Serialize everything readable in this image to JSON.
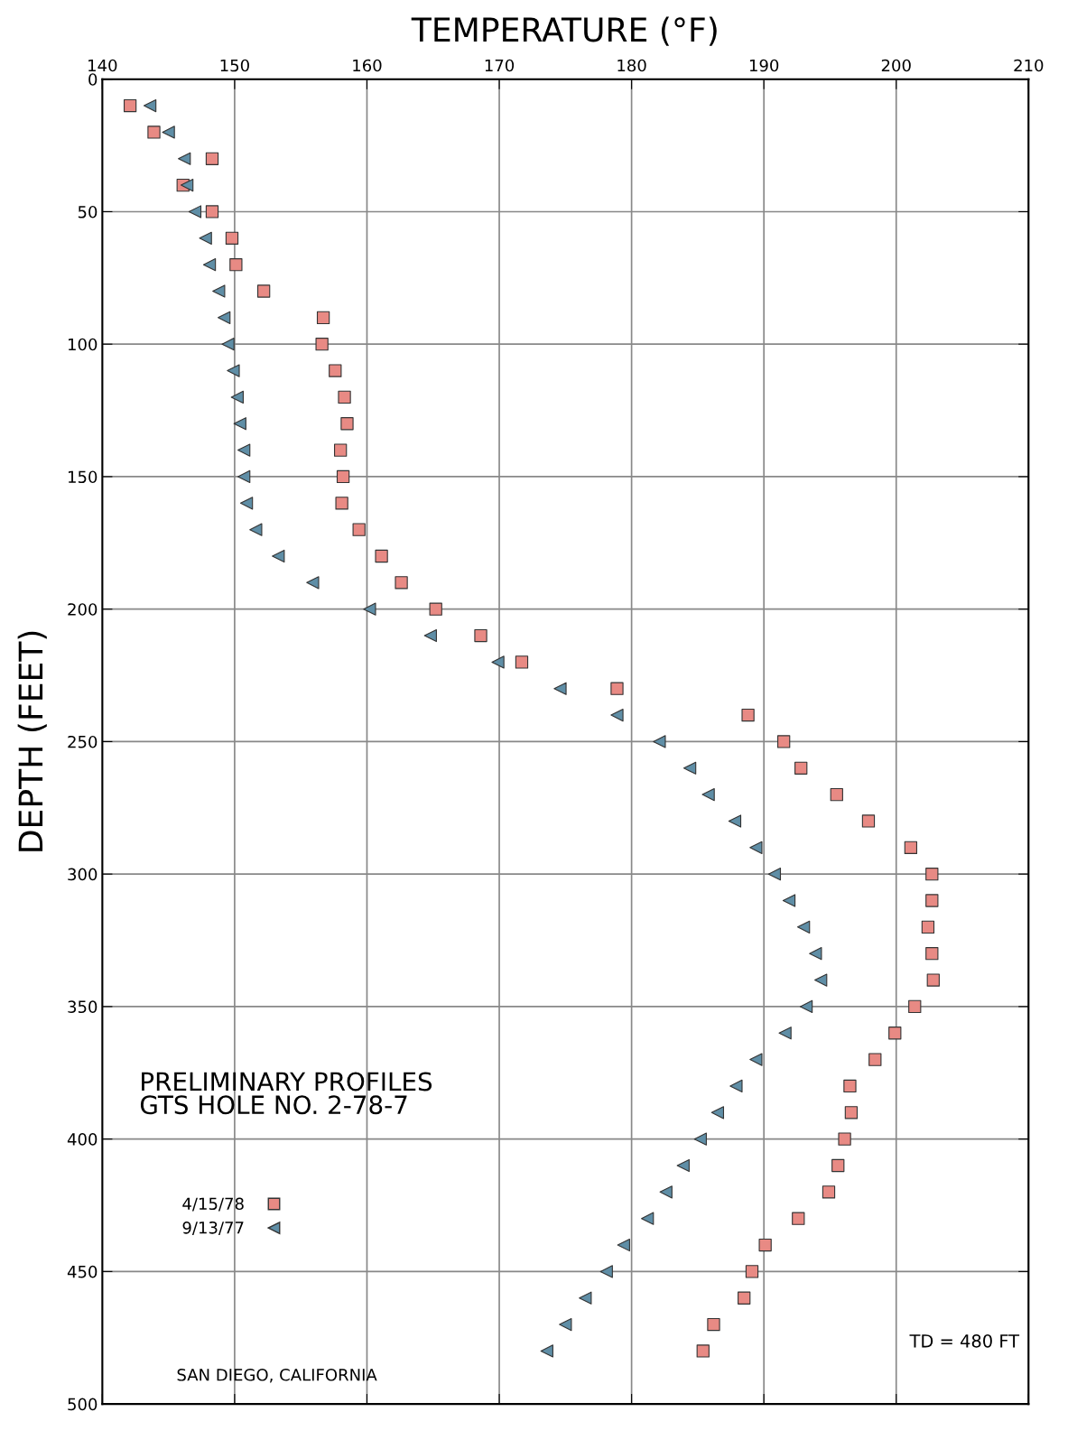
{
  "chart_data": {
    "type": "scatter",
    "xlabel": "TEMPERATURE (°F)",
    "ylabel": "DEPTH (FEET)",
    "xlim": [
      140,
      210
    ],
    "xticks": [
      140,
      150,
      160,
      170,
      180,
      190,
      200,
      210
    ],
    "ylim": [
      500,
      0
    ],
    "yticks": [
      0,
      50,
      100,
      150,
      200,
      250,
      300,
      350,
      400,
      450,
      500
    ],
    "grid": true,
    "legend": "bottom left",
    "series": [
      {
        "name": "4/15/78",
        "color": "#e88a84",
        "marker": "square",
        "values": [
          10,
          20,
          30,
          40,
          50,
          60,
          70,
          80,
          90,
          100,
          110,
          120,
          130,
          140,
          150,
          160,
          170,
          180,
          190,
          200,
          210,
          220,
          230,
          240,
          250,
          260,
          270,
          280,
          290,
          300,
          310,
          320,
          330,
          340,
          350,
          360,
          370,
          380,
          390,
          400,
          410,
          420,
          430,
          440,
          450,
          460,
          470,
          480
        ],
        "x": [
          142.1,
          143.9,
          148.3,
          146.1,
          148.3,
          149.8,
          150.1,
          152.2,
          156.7,
          156.6,
          157.6,
          158.3,
          158.5,
          158.0,
          158.2,
          158.1,
          159.4,
          161.1,
          162.6,
          165.2,
          168.6,
          171.7,
          178.9,
          188.8,
          191.5,
          192.8,
          195.5,
          197.9,
          201.1,
          202.7,
          202.7,
          202.4,
          202.7,
          202.8,
          201.4,
          199.9,
          198.4,
          196.5,
          196.6,
          196.1,
          195.6,
          194.9,
          192.6,
          190.1,
          189.1,
          188.5,
          186.2,
          185.4
        ]
      },
      {
        "name": "9/13/77",
        "color": "#5f8ea6",
        "marker": "triangle",
        "values": [
          10,
          20,
          30,
          40,
          50,
          60,
          70,
          80,
          90,
          100,
          110,
          120,
          130,
          140,
          150,
          160,
          170,
          180,
          190,
          200,
          210,
          220,
          230,
          240,
          250,
          260,
          270,
          280,
          290,
          300,
          310,
          320,
          330,
          340,
          350,
          360,
          370,
          380,
          390,
          400,
          410,
          420,
          430,
          440,
          450,
          460,
          470,
          480
        ],
        "x": [
          143.6,
          145.0,
          146.2,
          146.4,
          147.0,
          147.8,
          148.1,
          148.8,
          149.2,
          149.5,
          149.9,
          150.2,
          150.4,
          150.7,
          150.7,
          150.9,
          151.6,
          153.3,
          155.9,
          160.2,
          164.8,
          169.9,
          174.6,
          178.9,
          182.1,
          184.4,
          185.8,
          187.8,
          189.4,
          190.8,
          191.9,
          193.0,
          193.9,
          194.3,
          193.2,
          191.6,
          189.4,
          187.9,
          186.5,
          185.2,
          183.9,
          182.6,
          181.2,
          179.4,
          178.1,
          176.5,
          175.0,
          173.6
        ]
      }
    ],
    "annotations": [
      "PRELIMINARY PROFILES\nGTS HOLE NO. 2-78-7",
      "TD = 480 FT",
      "SAN DIEGO, CALIFORNIA"
    ]
  }
}
